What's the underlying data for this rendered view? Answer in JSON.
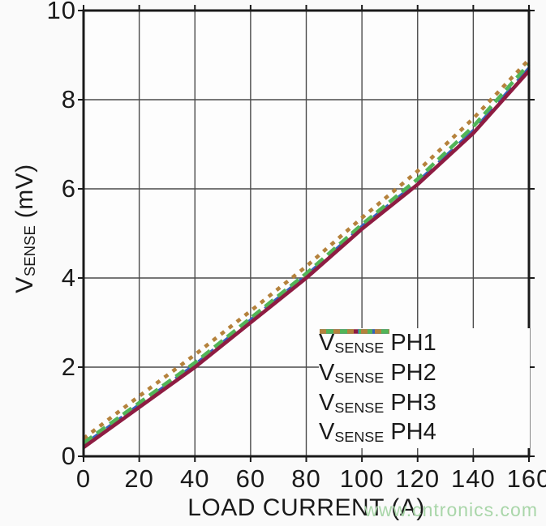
{
  "page": {
    "background": "#fafafa",
    "watermark": {
      "text": "www.cntronics.com",
      "color": "#a9d6a9"
    }
  },
  "chart_data": {
    "type": "line",
    "title": "",
    "xlabel": "LOAD CURRENT (A)",
    "ylabel": {
      "prefix": "V",
      "sub": "SENSE",
      "suffix": " (mV)"
    },
    "xlim": [
      0,
      160
    ],
    "ylim": [
      0,
      10
    ],
    "x_ticks": [
      0,
      20,
      40,
      60,
      80,
      100,
      120,
      140,
      160
    ],
    "y_ticks": [
      0,
      2,
      4,
      6,
      8,
      10
    ],
    "grid": true,
    "legend_position": "lower right",
    "x": [
      0,
      20,
      40,
      60,
      80,
      100,
      120,
      140,
      160
    ],
    "series": [
      {
        "name": "VSENSE PH1",
        "label": {
          "prefix": "V",
          "sub": "SENSE",
          "suffix": " PH1"
        },
        "color": "#8E1C42",
        "dash": "solid",
        "values": [
          0.2,
          1.1,
          2.0,
          3.0,
          4.0,
          5.1,
          6.1,
          7.25,
          8.65
        ]
      },
      {
        "name": "VSENSE PH2",
        "label": {
          "prefix": "V",
          "sub": "SENSE",
          "suffix": " PH2"
        },
        "color": "#3465BD",
        "dash": "long-dash",
        "values": [
          0.25,
          1.15,
          2.05,
          3.05,
          4.05,
          5.15,
          6.15,
          7.3,
          8.7
        ]
      },
      {
        "name": "VSENSE PH3",
        "label": {
          "prefix": "V",
          "sub": "SENSE",
          "suffix": " PH3"
        },
        "color": "#52B558",
        "dash": "dash",
        "values": [
          0.3,
          1.2,
          2.1,
          3.1,
          4.1,
          5.2,
          6.22,
          7.4,
          8.8
        ]
      },
      {
        "name": "VSENSE PH4",
        "label": {
          "prefix": "V",
          "sub": "SENSE",
          "suffix": " PH4"
        },
        "color": "#B5823C",
        "dash": "dot",
        "values": [
          0.4,
          1.35,
          2.28,
          3.26,
          4.26,
          5.35,
          6.4,
          7.58,
          8.9
        ]
      }
    ],
    "style": {
      "grid_color": "#4b4b4b",
      "axis_color": "#1a1a1a",
      "plot_background": "#fdfdfd"
    }
  }
}
